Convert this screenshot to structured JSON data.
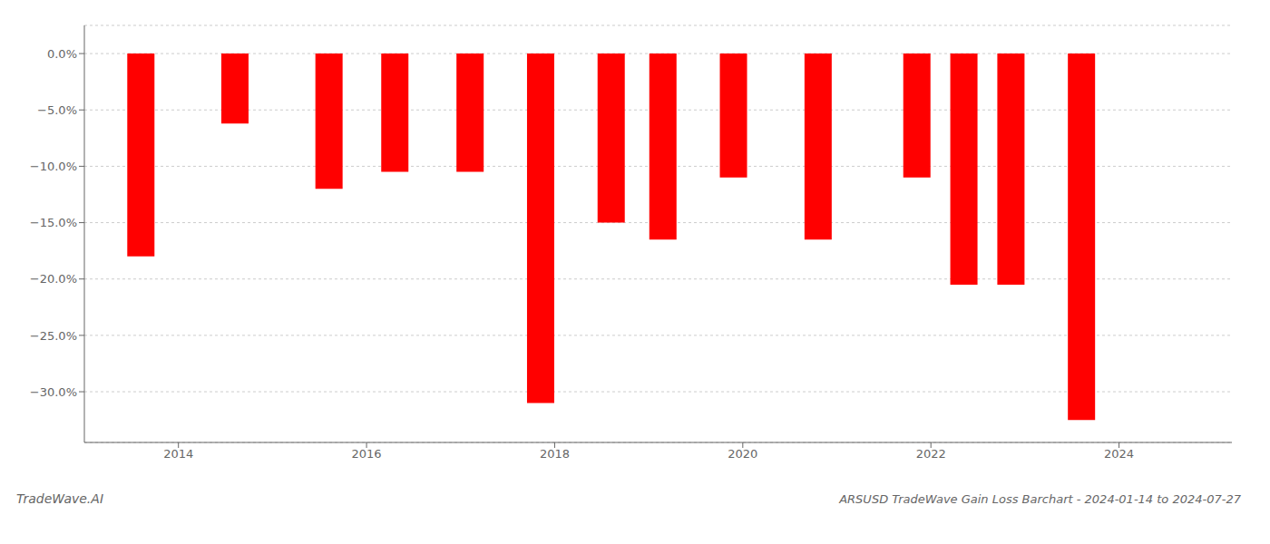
{
  "chart_data": {
    "type": "bar",
    "title": "ARSUSD TradeWave Gain Loss Barchart - 2024-01-14 to 2024-07-27",
    "annotations": [
      "TradeWave.AI"
    ],
    "x": [
      2013.6,
      2014.6,
      2015.6,
      2016.3,
      2017.1,
      2017.85,
      2018.6,
      2019.15,
      2019.9,
      2020.8,
      2021.85,
      2022.35,
      2022.85,
      2023.6
    ],
    "values": [
      -18.0,
      -6.2,
      -12.0,
      -10.5,
      -10.5,
      -31.0,
      -15.0,
      -16.5,
      -11.0,
      -16.5,
      -11.0,
      -20.5,
      -20.5,
      -32.5
    ],
    "color": "#ff0000",
    "xlim": [
      2013.0,
      2025.2
    ],
    "xticks": [
      2014,
      2016,
      2018,
      2020,
      2022,
      2024
    ],
    "ylim": [
      -34.5,
      2.5
    ],
    "yticks": [
      {
        "value": 0.0,
        "label": "0.0%"
      },
      {
        "value": -5.0,
        "label": "−5.0%"
      },
      {
        "value": -10.0,
        "label": "−10.0%"
      },
      {
        "value": -15.0,
        "label": "−15.0%"
      },
      {
        "value": -20.0,
        "label": "−20.0%"
      },
      {
        "value": -25.0,
        "label": "−25.0%"
      },
      {
        "value": -30.0,
        "label": "−30.0%"
      }
    ],
    "grid": true
  }
}
